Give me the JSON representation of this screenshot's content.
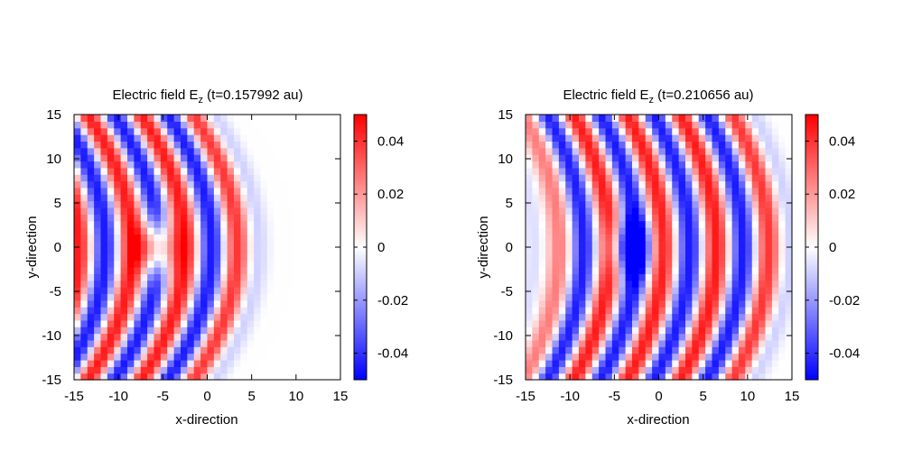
{
  "chart_data": [
    {
      "type": "heatmap",
      "title": "Electric field E",
      "title_sub": "z",
      "title_suffix": " (t=0.157992 au)",
      "xlabel": "x-direction",
      "ylabel": "y-direction",
      "xlim": [
        -15,
        15
      ],
      "ylim": [
        -15,
        15
      ],
      "xticks": [
        -15,
        -10,
        -5,
        0,
        5,
        10,
        15
      ],
      "yticks": [
        -15,
        -10,
        -5,
        0,
        5,
        10,
        15
      ],
      "colorbar": {
        "min": -0.05,
        "max": 0.05,
        "ticks": [
          -0.04,
          -0.02,
          0,
          0.02,
          0.04
        ],
        "tick_labels": [
          "-0.04",
          "-0.02",
          "0",
          "0.02",
          "0.04"
        ],
        "low_color": "#0000ff",
        "mid_color": "#ffffff",
        "high_color": "#ff0000"
      },
      "field": {
        "wavefront_x": 5,
        "wavelength": 6.0,
        "amplitude": 0.05,
        "blob_x": -5.7,
        "blob_y": 0,
        "blob_amp": 0.05,
        "curve": 0.022
      }
    },
    {
      "type": "heatmap",
      "title": "Electric field E",
      "title_sub": "z",
      "title_suffix": " (t=0.210656 au)",
      "xlabel": "x-direction",
      "ylabel": "y-direction",
      "xlim": [
        -15,
        15
      ],
      "ylim": [
        -15,
        15
      ],
      "xticks": [
        -15,
        -10,
        -5,
        0,
        5,
        10,
        15
      ],
      "yticks": [
        -15,
        -10,
        -5,
        0,
        5,
        10,
        15
      ],
      "colorbar": {
        "min": -0.05,
        "max": 0.05,
        "ticks": [
          -0.04,
          -0.02,
          0,
          0.02,
          0.04
        ],
        "tick_labels": [
          "-0.04",
          "-0.02",
          "0",
          "0.02",
          "0.04"
        ],
        "low_color": "#0000ff",
        "mid_color": "#ffffff",
        "high_color": "#ff0000"
      },
      "field": {
        "wavefront_x": 14,
        "wavelength": 6.0,
        "amplitude": 0.05,
        "blob_x": -3.2,
        "blob_y": 0,
        "blob_amp": -0.05,
        "curve": 0.018
      }
    }
  ]
}
